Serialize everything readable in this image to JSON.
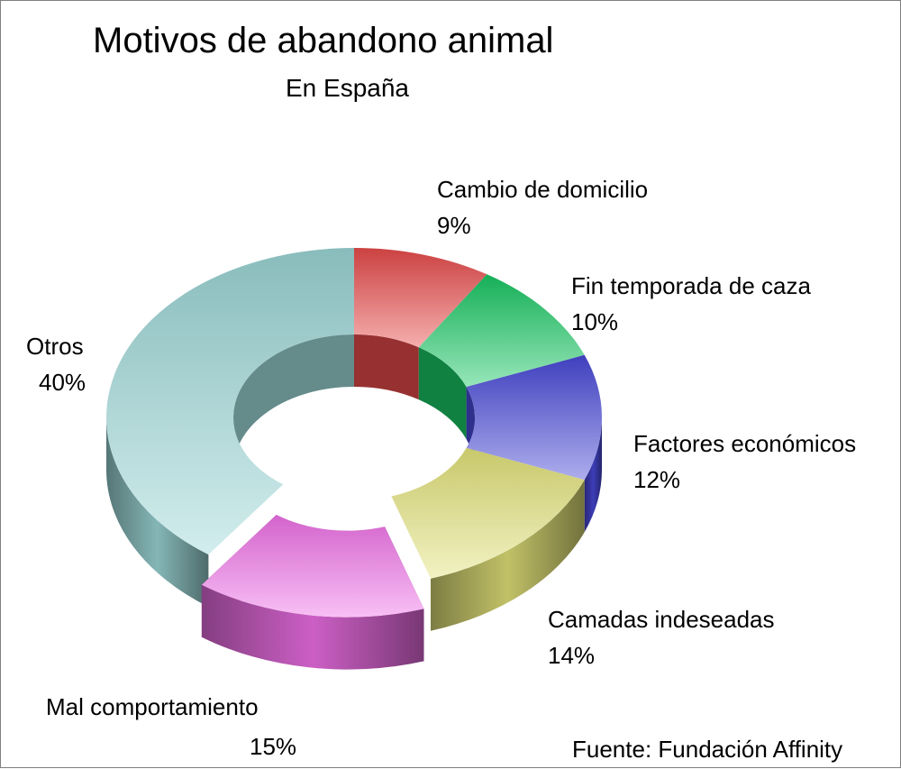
{
  "chart_data": {
    "type": "pie",
    "style": "3d-doughnut",
    "title": "Motivos de abandono animal",
    "subtitle": "En España",
    "source": "Fuente: Fundación Affinity",
    "slices": [
      {
        "label": "Cambio de domicilio",
        "value": 9,
        "value_label": "9%",
        "color": "#e84a4a",
        "exploded": false
      },
      {
        "label": "Fin temporada de caza",
        "value": 10,
        "value_label": "10%",
        "color": "#18c763",
        "exploded": false
      },
      {
        "label": "Factores económicos",
        "value": 12,
        "value_label": "12%",
        "color": "#4848d8",
        "exploded": false
      },
      {
        "label": "Camadas indeseadas",
        "value": 14,
        "value_label": "14%",
        "color": "#e3e37a",
        "exploded": false
      },
      {
        "label": "Mal comportamiento",
        "value": 15,
        "value_label": "15%",
        "color": "#f070e8",
        "exploded": true
      },
      {
        "label": "Otros",
        "value": 40,
        "value_label": "40%",
        "color": "#9cd6d6",
        "exploded": false
      }
    ]
  }
}
